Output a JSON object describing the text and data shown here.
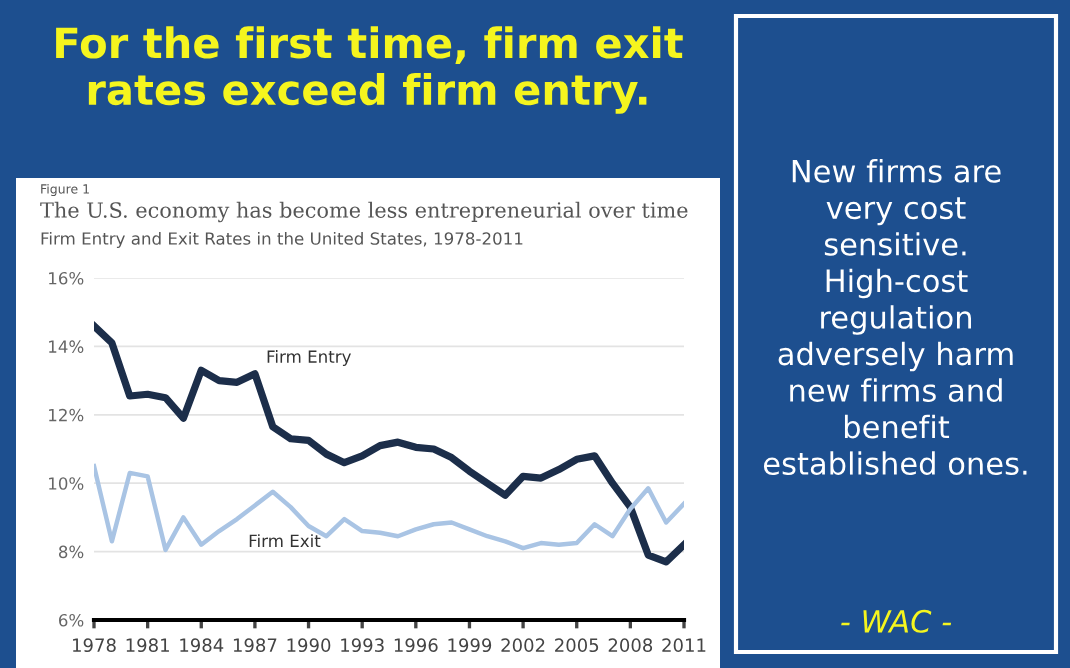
{
  "chart_data": {
    "type": "line",
    "title": "The U.S. economy has become less entrepreneurial over time",
    "subtitle": "Firm Entry and Exit Rates in the United States, 1978-2011",
    "x": [
      1978,
      1979,
      1980,
      1981,
      1982,
      1983,
      1984,
      1985,
      1986,
      1987,
      1988,
      1989,
      1990,
      1991,
      1992,
      1993,
      1994,
      1995,
      1996,
      1997,
      1998,
      1999,
      2000,
      2001,
      2002,
      2003,
      2004,
      2005,
      2006,
      2007,
      2008,
      2009,
      2010,
      2011
    ],
    "series": [
      {
        "name": "Firm Entry",
        "color": "#1c2e4a",
        "values": [
          14.6,
          14.1,
          12.55,
          12.6,
          12.5,
          11.9,
          13.3,
          13.0,
          12.95,
          13.2,
          11.65,
          11.3,
          11.25,
          10.85,
          10.6,
          10.8,
          11.1,
          11.2,
          11.05,
          11.0,
          10.75,
          10.35,
          10.0,
          9.65,
          10.2,
          10.15,
          10.4,
          10.7,
          10.8,
          10.0,
          9.3,
          7.9,
          7.7,
          8.2
        ]
      },
      {
        "name": "Firm Exit",
        "color": "#a9c4e4",
        "values": [
          10.5,
          8.3,
          10.3,
          10.2,
          8.05,
          9.0,
          8.2,
          8.6,
          8.95,
          9.35,
          9.75,
          9.3,
          8.75,
          8.45,
          8.95,
          8.6,
          8.55,
          8.45,
          8.65,
          8.8,
          8.85,
          8.65,
          8.45,
          8.3,
          8.1,
          8.25,
          8.2,
          8.25,
          8.8,
          8.45,
          9.25,
          9.85,
          8.85,
          9.4
        ]
      }
    ],
    "xlim": [
      1978,
      2011
    ],
    "xticks": [
      1978,
      1981,
      1984,
      1987,
      1990,
      1993,
      1996,
      1999,
      2002,
      2005,
      2008,
      2011
    ],
    "ylim": [
      6,
      16
    ],
    "yticks": [
      {
        "value": 6,
        "label": "6%"
      },
      {
        "value": 8,
        "label": "8%"
      },
      {
        "value": 10,
        "label": "10%"
      },
      {
        "value": 12,
        "label": "12%"
      },
      {
        "value": 14,
        "label": "14%"
      },
      {
        "value": 16,
        "label": "16%"
      }
    ],
    "grid": "y",
    "legend": false,
    "marker": "none",
    "line_style": "solid",
    "annotations": [
      "For the first time, firm exit rates exceed firm entry.",
      "Figure 1",
      "New firms are very cost sensitive. High-cost regulation adversely harm new firms and benefit established ones.",
      "- WAC -"
    ]
  }
}
